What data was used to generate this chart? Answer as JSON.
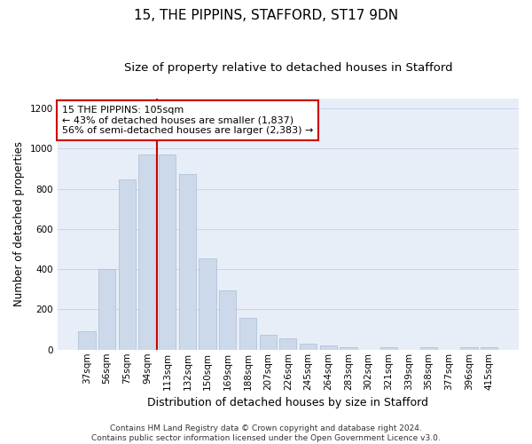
{
  "title1": "15, THE PIPPINS, STAFFORD, ST17 9DN",
  "title2": "Size of property relative to detached houses in Stafford",
  "xlabel": "Distribution of detached houses by size in Stafford",
  "ylabel": "Number of detached properties",
  "categories": [
    "37sqm",
    "56sqm",
    "75sqm",
    "94sqm",
    "113sqm",
    "132sqm",
    "150sqm",
    "169sqm",
    "188sqm",
    "207sqm",
    "226sqm",
    "245sqm",
    "264sqm",
    "283sqm",
    "302sqm",
    "321sqm",
    "339sqm",
    "358sqm",
    "377sqm",
    "396sqm",
    "415sqm"
  ],
  "values": [
    90,
    400,
    845,
    970,
    970,
    875,
    455,
    295,
    160,
    75,
    55,
    30,
    20,
    10,
    0,
    10,
    0,
    10,
    0,
    10,
    10
  ],
  "bar_color": "#ccd9ea",
  "bar_edgecolor": "#aabdd4",
  "vline_color": "#cc0000",
  "annotation_text": "15 THE PIPPINS: 105sqm\n← 43% of detached houses are smaller (1,837)\n56% of semi-detached houses are larger (2,383) →",
  "annotation_box_color": "white",
  "annotation_box_edgecolor": "#cc0000",
  "ylim": [
    0,
    1250
  ],
  "yticks": [
    0,
    200,
    400,
    600,
    800,
    1000,
    1200
  ],
  "grid_color": "#c8d4e8",
  "background_color": "#e8eef8",
  "footer_text": "Contains HM Land Registry data © Crown copyright and database right 2024.\nContains public sector information licensed under the Open Government Licence v3.0.",
  "title1_fontsize": 11,
  "title2_fontsize": 9.5,
  "xlabel_fontsize": 9,
  "ylabel_fontsize": 8.5,
  "tick_fontsize": 7.5,
  "annotation_fontsize": 8,
  "footer_fontsize": 6.5
}
